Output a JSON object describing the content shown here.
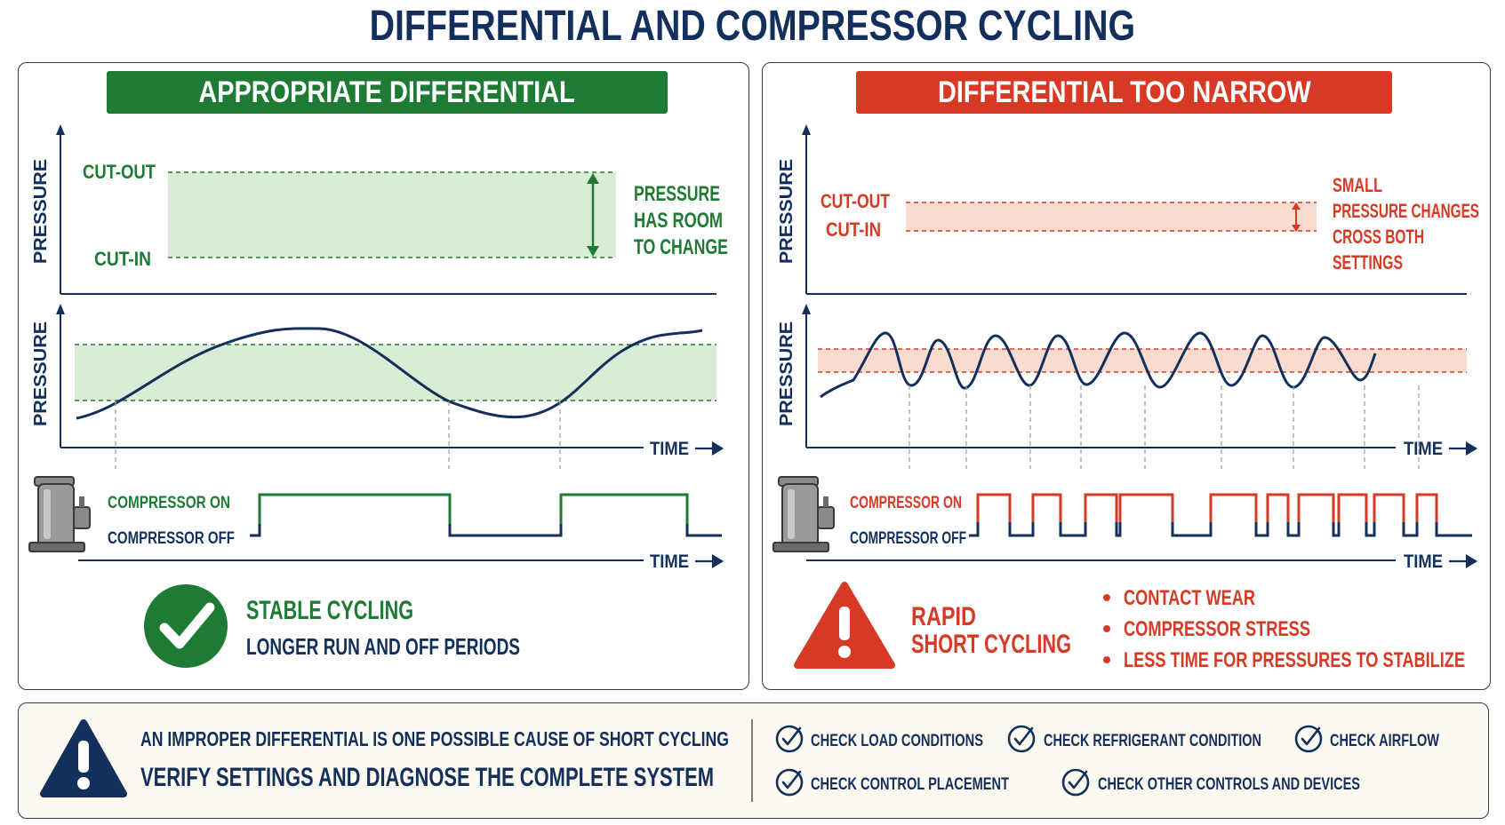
{
  "title": "DIFFERENTIAL AND COMPRESSOR CYCLING",
  "left_panel": {
    "banner": "APPROPRIATE DIFFERENTIAL",
    "axis_pressure": "PRESSURE",
    "cut_out": "CUT-OUT",
    "cut_in": "CUT-IN",
    "note_lines": [
      "PRESSURE",
      "HAS ROOM",
      "TO CHANGE"
    ],
    "time_label": "TIME",
    "compressor_on": "COMPRESSOR ON",
    "compressor_off": "COMPRESSOR OFF",
    "result_title": "STABLE CYCLING",
    "result_subtitle": "LONGER RUN AND OFF PERIODS"
  },
  "right_panel": {
    "banner": "DIFFERENTIAL TOO NARROW",
    "axis_pressure": "PRESSURE",
    "cut_out": "CUT-OUT",
    "cut_in": "CUT-IN",
    "note_lines": [
      "SMALL",
      "PRESSURE CHANGES",
      "CROSS BOTH",
      "SETTINGS"
    ],
    "time_label": "TIME",
    "compressor_on": "COMPRESSOR ON",
    "compressor_off": "COMPRESSOR OFF",
    "result_title_lines": [
      "RAPID",
      "SHORT CYCLING"
    ],
    "bullets": [
      "CONTACT WEAR",
      "COMPRESSOR STRESS",
      "LESS TIME FOR PRESSURES TO STABILIZE"
    ]
  },
  "footer": {
    "line1": "AN IMPROPER DIFFERENTIAL IS ONE POSSIBLE CAUSE OF SHORT CYCLING",
    "line2": "VERIFY SETTINGS AND DIAGNOSE THE COMPLETE SYSTEM",
    "checks": [
      "CHECK LOAD CONDITIONS",
      "CHECK REFRIGERANT CONDITION",
      "CHECK AIRFLOW",
      "CHECK CONTROL PLACEMENT",
      "CHECK OTHER CONTROLS AND DEVICES"
    ]
  },
  "colors": {
    "navy": "#13305c",
    "green": "#1e7b34",
    "red": "#d63a24",
    "green_band": "#d9ecd6",
    "red_band": "#f9dccf"
  }
}
